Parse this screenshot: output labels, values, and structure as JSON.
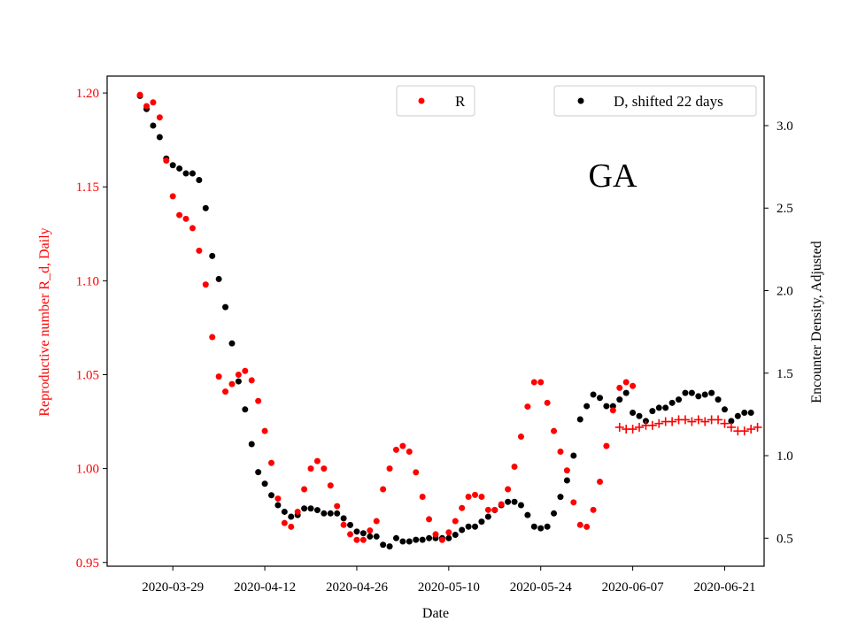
{
  "chart_data": {
    "type": "scatter",
    "annotation": "GA",
    "xlabel": "Date",
    "ylabel_left": "Reproductive number R_d, Daily",
    "ylabel_right": "Encounter Density, Adjusted",
    "x_ticks": [
      "2020-03-29",
      "2020-04-12",
      "2020-04-26",
      "2020-05-10",
      "2020-05-24",
      "2020-06-07",
      "2020-06-21"
    ],
    "y_left_ticks": [
      "0.95",
      "1.00",
      "1.05",
      "1.10",
      "1.15",
      "1.20"
    ],
    "y_right_ticks": [
      "0.5",
      "1.0",
      "1.5",
      "2.0",
      "2.5",
      "3.0"
    ],
    "xlim": [
      "2020-03-19",
      "2020-06-27"
    ],
    "ylim_left": [
      0.948,
      1.209
    ],
    "ylim_right": [
      0.33,
      3.3
    ],
    "legend": [
      {
        "label": "R",
        "position": "top-center"
      },
      {
        "label": "D, shifted 22 days",
        "position": "top-right"
      }
    ],
    "colors": {
      "R": "#ff0000",
      "D": "#000000",
      "left_axis": "#ff0000"
    },
    "series": [
      {
        "name": "R",
        "axis": "left",
        "marker": "dot",
        "start_date": "2020-03-24",
        "values": [
          1.199,
          1.193,
          1.195,
          1.187,
          1.164,
          1.145,
          1.135,
          1.133,
          1.128,
          1.116,
          1.098,
          1.07,
          1.049,
          1.041,
          1.045,
          1.05,
          1.052,
          1.047,
          1.036,
          1.02,
          1.003,
          0.984,
          0.971,
          0.969,
          0.977,
          0.989,
          1.0,
          1.004,
          1.0,
          0.991,
          0.98,
          0.97,
          0.965,
          0.962,
          0.962,
          0.967,
          0.972,
          0.989,
          1.0,
          1.01,
          1.012,
          1.009,
          0.998,
          0.985,
          0.973,
          0.965,
          0.962,
          0.966,
          0.972,
          0.979,
          0.985,
          0.986,
          0.985,
          0.978,
          0.978,
          0.981,
          0.989,
          1.001,
          1.017,
          1.033,
          1.046,
          1.046,
          1.035,
          1.02,
          1.009,
          0.999,
          0.982,
          0.97,
          0.969,
          0.978,
          0.993,
          1.012,
          1.031,
          1.043,
          1.046,
          1.044
        ]
      },
      {
        "name": "R (projected)",
        "axis": "left",
        "marker": "plus",
        "start_date": "2020-06-05",
        "values": [
          1.022,
          1.021,
          1.021,
          1.022,
          1.023,
          1.023,
          1.024,
          1.025,
          1.025,
          1.026,
          1.026,
          1.025,
          1.026,
          1.025,
          1.026,
          1.026,
          1.024,
          1.022,
          1.02,
          1.02,
          1.021,
          1.022
        ]
      },
      {
        "name": "D, shifted 22 days",
        "axis": "right",
        "marker": "dot",
        "start_date": "2020-03-24",
        "values": [
          3.18,
          3.1,
          3.0,
          2.93,
          2.8,
          2.76,
          2.74,
          2.71,
          2.71,
          2.67,
          2.5,
          2.21,
          2.07,
          1.9,
          1.68,
          1.45,
          1.28,
          1.07,
          0.9,
          0.83,
          0.76,
          0.7,
          0.66,
          0.63,
          0.64,
          0.68,
          0.68,
          0.67,
          0.65,
          0.65,
          0.65,
          0.62,
          0.58,
          0.54,
          0.53,
          0.51,
          0.51,
          0.46,
          0.45,
          0.5,
          0.48,
          0.48,
          0.49,
          0.49,
          0.5,
          0.5,
          0.5,
          0.5,
          0.52,
          0.55,
          0.57,
          0.57,
          0.6,
          0.63,
          0.67,
          0.7,
          0.72,
          0.72,
          0.7,
          0.64,
          0.57,
          0.56,
          0.57,
          0.65,
          0.75,
          0.85,
          1.0,
          1.22,
          1.3,
          1.37,
          1.35,
          1.3,
          1.3,
          1.34,
          1.38,
          1.26,
          1.24,
          1.21,
          1.27,
          1.29,
          1.29,
          1.32,
          1.34,
          1.38,
          1.38,
          1.36,
          1.37,
          1.38,
          1.34,
          1.28,
          1.21,
          1.24,
          1.26,
          1.26
        ]
      }
    ]
  }
}
